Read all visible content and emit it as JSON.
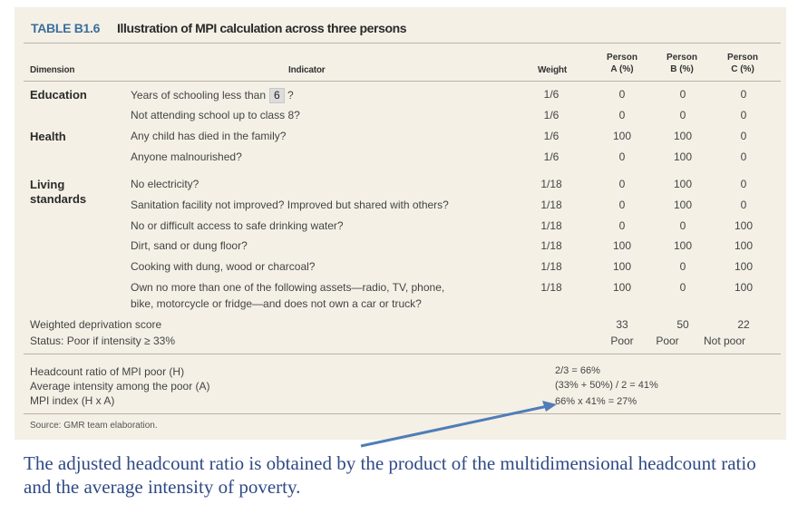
{
  "table": {
    "tag": "TABLE B1.6",
    "title": "Illustration of MPI calculation across three persons",
    "headers": {
      "dimension": "Dimension",
      "indicator": "Indicator",
      "weight": "Weight",
      "person_a": [
        "Person",
        "A (%)"
      ],
      "person_b": [
        "Person",
        "B (%)"
      ],
      "person_c": [
        "Person",
        "C (%)"
      ]
    },
    "dimensions": {
      "education": "Education",
      "health": "Health",
      "living": [
        "Living",
        "standards"
      ]
    },
    "rows": [
      {
        "indicator": "Years of schooling less than",
        "indicator_value": "6",
        "indicator_suffix": "?",
        "weight": "1/6",
        "a": "0",
        "b": "0",
        "c": "0"
      },
      {
        "indicator": "Not attending school up to class 8?",
        "weight": "1/6",
        "a": "0",
        "b": "0",
        "c": "0"
      },
      {
        "indicator": "Any child has died in the family?",
        "weight": "1/6",
        "a": "100",
        "b": "100",
        "c": "0"
      },
      {
        "indicator": "Anyone malnourished?",
        "weight": "1/6",
        "a": "0",
        "b": "100",
        "c": "0"
      },
      {
        "indicator": "No electricity?",
        "weight": "1/18",
        "a": "0",
        "b": "100",
        "c": "0"
      },
      {
        "indicator": "Sanitation facility not improved? Improved but shared with others?",
        "weight": "1/18",
        "a": "0",
        "b": "100",
        "c": "0"
      },
      {
        "indicator": "No or difficult access to safe drinking water?",
        "weight": "1/18",
        "a": "0",
        "b": "0",
        "c": "100"
      },
      {
        "indicator": "Dirt, sand or dung floor?",
        "weight": "1/18",
        "a": "100",
        "b": "100",
        "c": "100"
      },
      {
        "indicator": "Cooking with dung, wood or charcoal?",
        "weight": "1/18",
        "a": "100",
        "b": "0",
        "c": "100"
      },
      {
        "indicator": [
          "Own no more than one of the following assets—radio, TV, phone,",
          "bike, motorcycle or fridge—and does not own a car or truck?"
        ],
        "weight": "1/18",
        "a": "100",
        "b": "0",
        "c": "100"
      }
    ],
    "weighted_score": {
      "label": "Weighted deprivation score",
      "a": "33",
      "b": "50",
      "c": "22"
    },
    "status": {
      "label": "Status: Poor if intensity ≥ 33%",
      "a": "Poor",
      "b": "Poor",
      "c": "Not poor"
    },
    "summary": [
      {
        "label": "Headcount ratio of MPI poor (H)",
        "value": "2/3 = 66%"
      },
      {
        "label": "Average intensity among the poor (A)",
        "value": "(33% + 50%) / 2 = 41%"
      },
      {
        "label": "MPI index (H x A)",
        "value": "66% x 41% = 27%"
      }
    ],
    "source": "Source: GMR team elaboration."
  },
  "caption": "The adjusted headcount ratio is obtained by the product of the multidimensional headcount ratio and the average intensity of poverty.",
  "colors": {
    "panel": "#f4f0e6",
    "tag": "#3d6f9c",
    "caption": "#2f4a86",
    "arrow": "#4f7db8"
  }
}
